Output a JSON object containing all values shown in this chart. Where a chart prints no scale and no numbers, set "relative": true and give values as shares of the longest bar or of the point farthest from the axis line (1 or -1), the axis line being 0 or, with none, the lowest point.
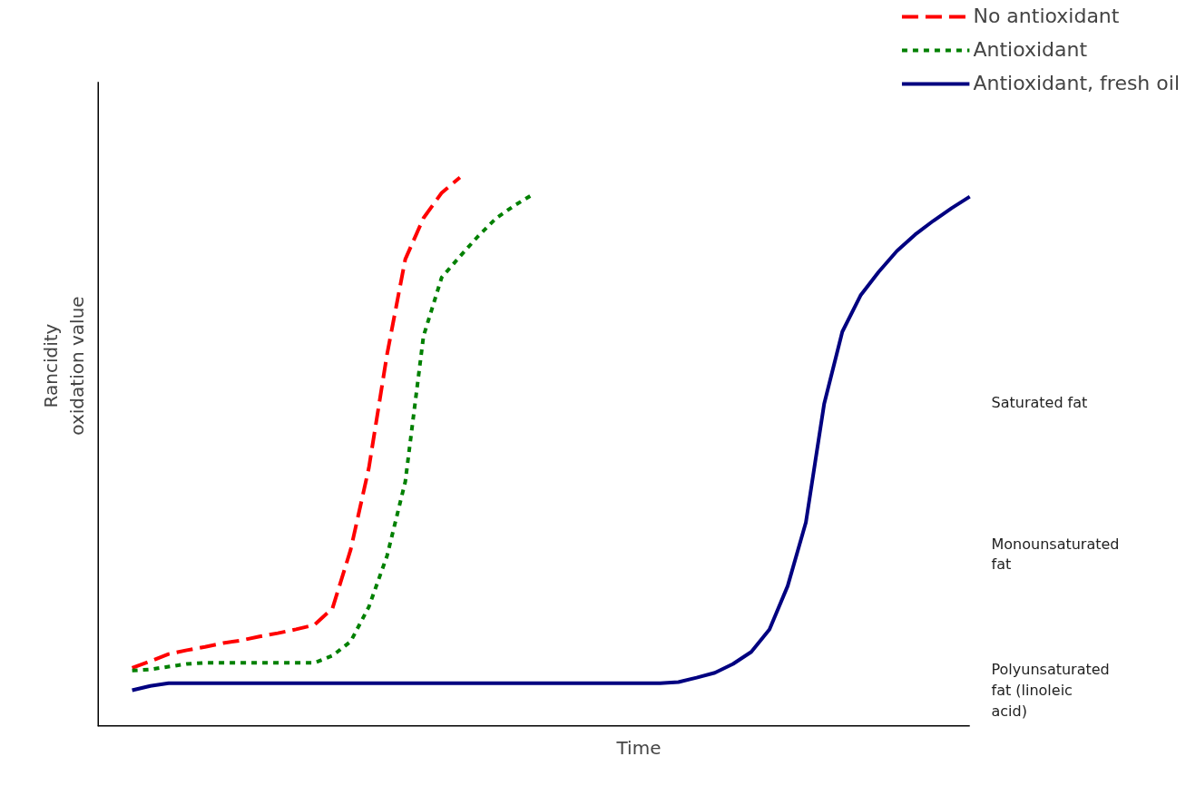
{
  "chart_data": {
    "type": "line",
    "relative": true,
    "xlabel": "Time",
    "ylabel": "Rancidity oxidation value",
    "legend": "top right",
    "grid": false,
    "categories": [
      null,
      null,
      null,
      null,
      null,
      null,
      null,
      null,
      null,
      null,
      null,
      null,
      null,
      null,
      null,
      null,
      null,
      null,
      null,
      null,
      null,
      null,
      null,
      null,
      null,
      null,
      null,
      null,
      null,
      null,
      null,
      null,
      null,
      null,
      null,
      null,
      null,
      null,
      null,
      null,
      null,
      null,
      null,
      null,
      null,
      null,
      null
    ],
    "series": [
      {
        "name": "No antioxidant",
        "color": "#ff0000",
        "line_style": "dashed",
        "values": [
          0.107,
          0.119,
          0.132,
          0.139,
          0.145,
          0.152,
          0.157,
          0.164,
          0.17,
          0.177,
          0.185,
          0.215,
          0.322,
          0.471,
          0.678,
          0.851,
          0.926,
          0.972,
          1.0,
          null,
          null,
          null,
          null,
          null,
          null,
          null,
          null,
          null,
          null,
          null,
          null,
          null,
          null,
          null,
          null,
          null,
          null,
          null,
          null,
          null,
          null,
          null,
          null,
          null,
          null,
          null,
          null
        ]
      },
      {
        "name": "Antioxidant",
        "color": "#008000",
        "line_style": "dotted",
        "values": [
          0.102,
          0.104,
          0.109,
          0.114,
          0.116,
          0.116,
          0.116,
          0.116,
          0.116,
          0.116,
          0.116,
          0.129,
          0.155,
          0.218,
          0.311,
          0.446,
          0.711,
          0.818,
          0.856,
          0.893,
          0.926,
          0.949,
          0.969,
          null,
          null,
          null,
          null,
          null,
          null,
          null,
          null,
          null,
          null,
          null,
          null,
          null,
          null,
          null,
          null,
          null,
          null,
          null,
          null,
          null,
          null,
          null,
          null
        ]
      },
      {
        "name": "Antioxidant, fresh oil",
        "color": "#000080",
        "line_style": "solid",
        "values": [
          0.066,
          0.074,
          0.079,
          0.079,
          0.079,
          0.079,
          0.079,
          0.079,
          0.079,
          0.079,
          0.079,
          0.079,
          0.079,
          0.079,
          0.079,
          0.079,
          0.079,
          0.079,
          0.079,
          0.079,
          0.079,
          0.079,
          0.079,
          0.079,
          0.079,
          0.079,
          0.079,
          0.079,
          0.079,
          0.079,
          0.081,
          0.089,
          0.098,
          0.114,
          0.136,
          0.177,
          0.256,
          0.372,
          0.587,
          0.719,
          0.785,
          0.828,
          0.866,
          0.896,
          0.921,
          0.944,
          0.965
        ]
      }
    ],
    "annotations": [
      "Saturated fat",
      "Monounsaturated fat",
      "Polyunsaturated fat (linoleic acid)"
    ]
  }
}
